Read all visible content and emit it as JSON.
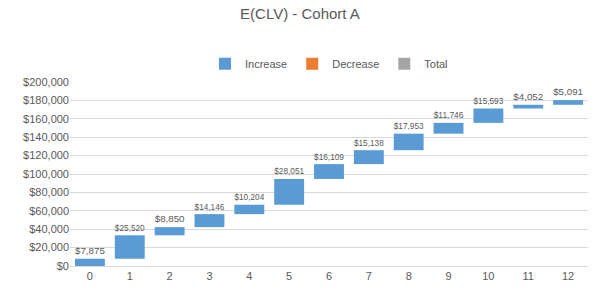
{
  "chart_data": {
    "type": "waterfall",
    "title": "E(CLV) - Cohort A",
    "categories": [
      "0",
      "1",
      "2",
      "3",
      "4",
      "5",
      "6",
      "7",
      "8",
      "9",
      "10",
      "11",
      "12"
    ],
    "series": [
      {
        "name": "Increase",
        "color": "#5b9bd5",
        "values": [
          7875,
          25520,
          8850,
          14146,
          10204,
          28051,
          16109,
          15138,
          17953,
          11746,
          15593,
          4052,
          5091
        ],
        "value_labels": [
          "$7,875",
          "$25,520",
          "$8,850",
          "$14,146",
          "$10,204",
          "$28,051",
          "$16,109",
          "$15,138",
          "$17,953",
          "$11,746",
          "$15,593",
          "$4,052",
          "$5,091"
        ]
      },
      {
        "name": "Decrease",
        "color": "#ed7d31",
        "values": [
          null,
          null,
          null,
          null,
          null,
          null,
          null,
          null,
          null,
          null,
          null,
          null,
          null
        ]
      },
      {
        "name": "Total",
        "color": "#a5a5a5",
        "values": [
          null,
          null,
          null,
          null,
          null,
          null,
          null,
          null,
          null,
          null,
          null,
          null,
          null
        ]
      }
    ],
    "ylim": [
      0,
      200000
    ],
    "yticks": [
      {
        "value": 0,
        "label": "$0"
      },
      {
        "value": 20000,
        "label": "$20,000"
      },
      {
        "value": 40000,
        "label": "$40,000"
      },
      {
        "value": 60000,
        "label": "$60,000"
      },
      {
        "value": 80000,
        "label": "$80,000"
      },
      {
        "value": 100000,
        "label": "$100,000"
      },
      {
        "value": 120000,
        "label": "$120,000"
      },
      {
        "value": 140000,
        "label": "$140,000"
      },
      {
        "value": 160000,
        "label": "$160,000"
      },
      {
        "value": 180000,
        "label": "$180,000"
      },
      {
        "value": 200000,
        "label": "$200,000"
      }
    ],
    "grid": true,
    "legend": "top",
    "data_labels": true
  }
}
